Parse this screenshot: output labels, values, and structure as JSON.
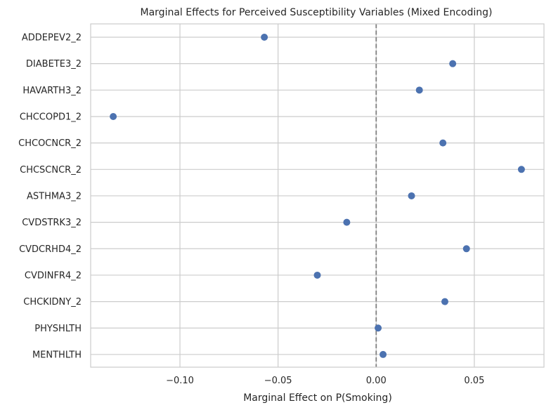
{
  "chart_data": {
    "type": "scatter",
    "title": "Marginal Effects for Perceived Susceptibility Variables (Mixed Encoding)",
    "xlabel": "Marginal Effect on P(Smoking)",
    "ylabel": "",
    "xlim": [
      -0.1455,
      0.0855
    ],
    "x_ticks": [
      -0.1,
      -0.05,
      0.0,
      0.05
    ],
    "x_tick_labels": [
      "−0.10",
      "−0.05",
      "0.00",
      "0.05"
    ],
    "reference_line": {
      "x": 0.0,
      "style": "dashed",
      "color": "#808080"
    },
    "grid": true,
    "legend": "none",
    "series": [
      {
        "color": "#4c72b0",
        "points": [
          {
            "label": "ADDEPEV2_2",
            "x": -0.057
          },
          {
            "label": "DIABETE3_2",
            "x": 0.039
          },
          {
            "label": "HAVARTH3_2",
            "x": 0.022
          },
          {
            "label": "CHCCOPD1_2",
            "x": -0.134
          },
          {
            "label": "CHCOCNCR_2",
            "x": 0.034
          },
          {
            "label": "CHCSCNCR_2",
            "x": 0.074
          },
          {
            "label": "ASTHMA3_2",
            "x": 0.018
          },
          {
            "label": "CVDSTRK3_2",
            "x": -0.015
          },
          {
            "label": "CVDCRHD4_2",
            "x": 0.046
          },
          {
            "label": "CVDINFR4_2",
            "x": -0.03
          },
          {
            "label": "CHCKIDNY_2",
            "x": 0.035
          },
          {
            "label": "PHYSHLTH",
            "x": 0.001
          },
          {
            "label": "MENTHLTH",
            "x": 0.0035
          }
        ]
      }
    ]
  },
  "colors": {
    "background": "#ffffff",
    "plot_background": "#ffffff",
    "grid": "#cccccc",
    "spine": "#cccccc",
    "text": "#262626"
  }
}
